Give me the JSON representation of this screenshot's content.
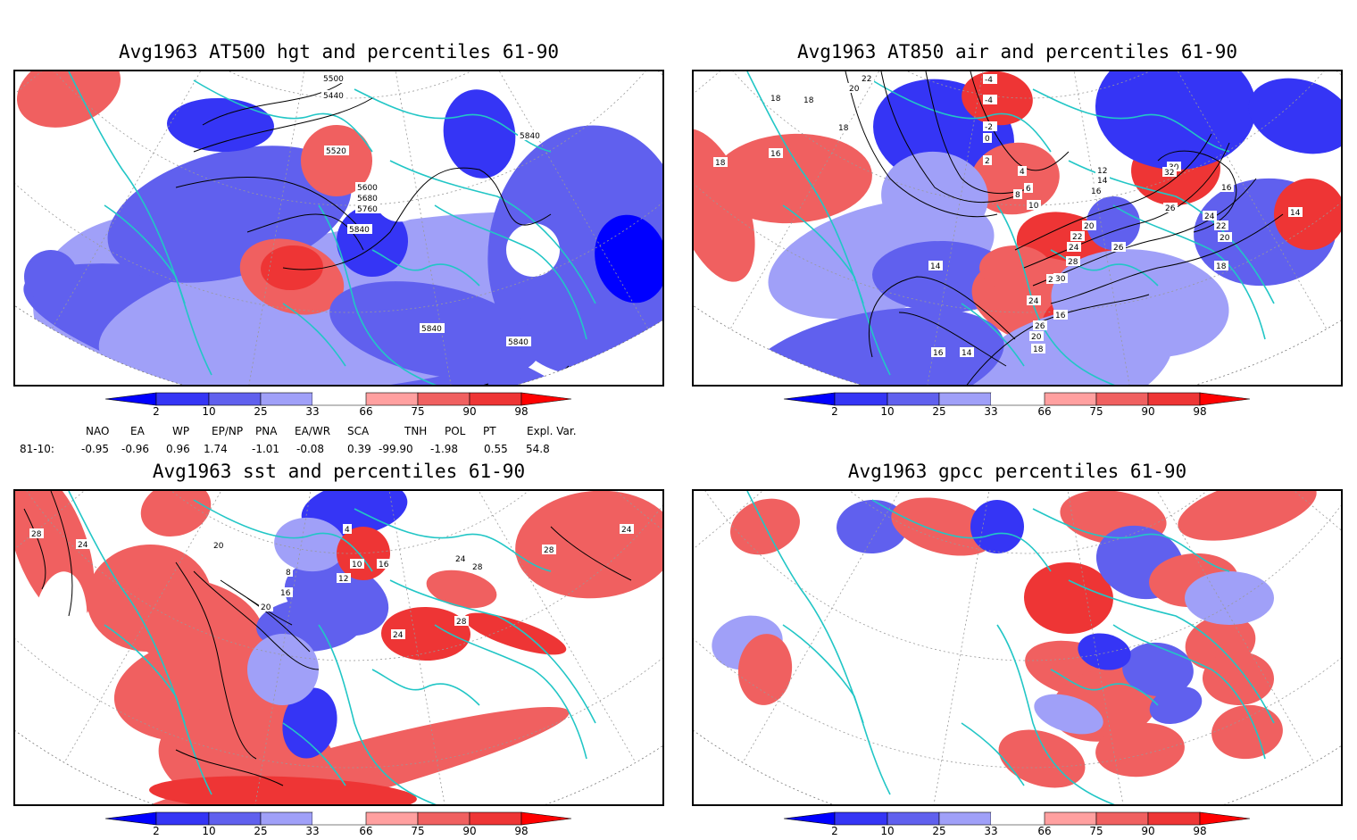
{
  "colors": {
    "coast": "#22c6c6",
    "contour": "#000000",
    "levels": [
      "#0000ff",
      "#3535f5",
      "#6060ee",
      "#a0a0f8",
      "#ffffff",
      "#ffa0a0",
      "#f06060",
      "#ee3535",
      "#ff0000"
    ]
  },
  "panels": [
    {
      "id": "tl",
      "title": "Avg1963 AT500 hgt and percentiles 61-90",
      "contour_labels": [
        "5500",
        "5440",
        "5520",
        "5600",
        "5680",
        "5760",
        "5840",
        "5840",
        "5840",
        "5840"
      ],
      "colorbar": [
        "2",
        "10",
        "25",
        "33",
        "66",
        "75",
        "90",
        "98"
      ]
    },
    {
      "id": "tr",
      "title": "Avg1963 AT850 air and percentiles 61-90",
      "contour_labels": [
        "22",
        "20",
        "18",
        "18",
        "18",
        "18",
        "16",
        "-4",
        "-4",
        "-2",
        "0",
        "2",
        "4",
        "6",
        "8",
        "10",
        "12",
        "14",
        "16",
        "20",
        "22",
        "24",
        "26",
        "28",
        "30",
        "32",
        "26",
        "24",
        "22",
        "20",
        "18",
        "16",
        "14",
        "14",
        "28",
        "30",
        "24",
        "26",
        "20",
        "18",
        "16",
        "14",
        "16"
      ],
      "colorbar": [
        "2",
        "10",
        "25",
        "33",
        "66",
        "75",
        "90",
        "98"
      ]
    },
    {
      "id": "bl",
      "title": "Avg1963 sst and percentiles 61-90",
      "contour_labels": [
        "28",
        "24",
        "20",
        "16",
        "20",
        "8",
        "12",
        "16",
        "10",
        "4",
        "28",
        "24",
        "24",
        "28",
        "24",
        "28"
      ],
      "colorbar": [
        "2",
        "10",
        "25",
        "33",
        "66",
        "75",
        "90",
        "98"
      ]
    },
    {
      "id": "br",
      "title": "Avg1963 gpcc percentiles 61-90",
      "contour_labels": [],
      "colorbar": [
        "2",
        "10",
        "25",
        "33",
        "66",
        "75",
        "90",
        "98"
      ]
    }
  ],
  "indices": {
    "headers": [
      "NAO",
      "EA",
      "WP",
      "EP/NP",
      "PNA",
      "EA/WR",
      "SCA",
      "TNH",
      "POL",
      "PT",
      "Expl. Var."
    ],
    "row_label": "81-10:",
    "values": [
      "-0.95",
      "-0.96",
      "0.96",
      "1.74",
      "-1.01",
      "-0.08",
      "0.39",
      "-99.90",
      "-1.98",
      "0.55",
      "54.8"
    ]
  }
}
